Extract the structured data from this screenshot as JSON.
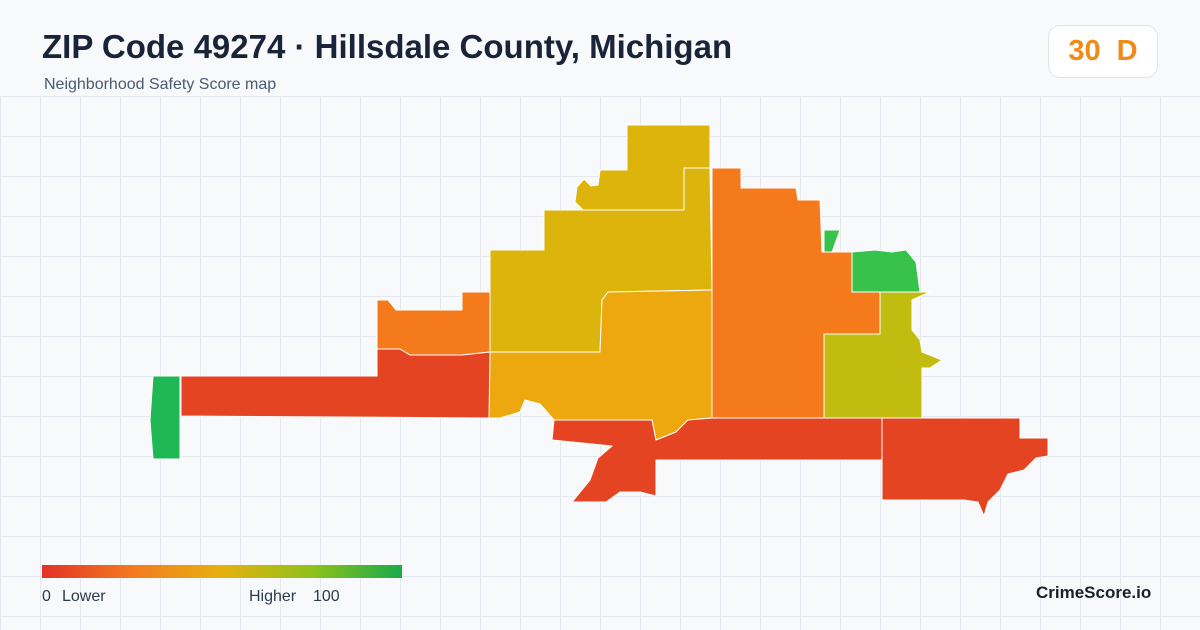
{
  "header": {
    "title": "ZIP Code 49274 · Hillsdale County, Michigan",
    "subtitle": "Neighborhood Safety Score map"
  },
  "score": {
    "value": "30",
    "grade": "D",
    "color": "#f08a18"
  },
  "map": {
    "regions": [
      {
        "name": "north-tract",
        "color": "#dcb40c"
      },
      {
        "name": "northwest-tract",
        "color": "#dcb40c"
      },
      {
        "name": "west-center-tract",
        "color": "#dcb40c"
      },
      {
        "name": "center-tract",
        "color": "#eda810"
      },
      {
        "name": "northwest-small-tract",
        "color": "#f47a1c"
      },
      {
        "name": "east-center-tract",
        "color": "#f47a1c"
      },
      {
        "name": "northeast-green-tract",
        "color": "#37c24c"
      },
      {
        "name": "east-tract",
        "color": "#c2bc10"
      },
      {
        "name": "west-strip-tract",
        "color": "#e44422"
      },
      {
        "name": "far-west-tract",
        "color": "#1fb854"
      },
      {
        "name": "south-center-tract",
        "color": "#e44422"
      },
      {
        "name": "southeast-tract",
        "color": "#e44422"
      }
    ]
  },
  "legend": {
    "low_value": "0",
    "low_label": "Lower",
    "high_label": "Higher",
    "high_value": "100",
    "gradient_colors": [
      "#e33228",
      "#f47a1f",
      "#e6b010",
      "#8ec21a",
      "#1aa94c"
    ]
  },
  "brand": "CrimeScore.io"
}
